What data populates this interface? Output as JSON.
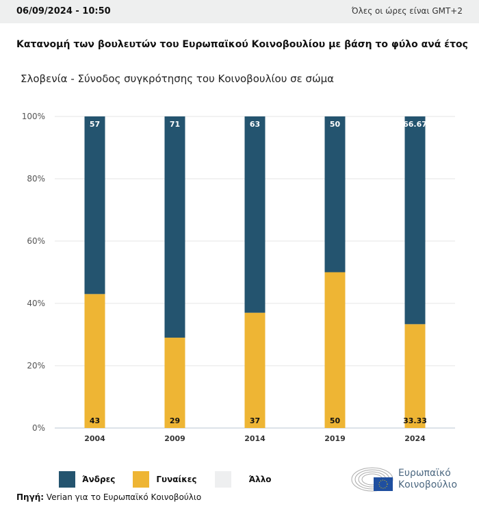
{
  "header": {
    "date": "06/09/2024 - 10:50",
    "timezone": "Όλες οι ώρες είναι GMT+2"
  },
  "chart_data": {
    "type": "bar",
    "stacked": true,
    "title": "Κατανομή των βουλευτών του Ευρωπαϊκού Κοινοβουλίου με βάση το φύλο ανά έτος",
    "subtitle": "Σλοβενία - Σύνοδος συγκρότησης του Κοινοβουλίου σε σώμα",
    "categories": [
      "2004",
      "2009",
      "2014",
      "2019",
      "2024"
    ],
    "series": [
      {
        "name": "Γυναίκες",
        "color": "#eeb534",
        "values": [
          43,
          29,
          37,
          50,
          33.33
        ],
        "labels": [
          "43",
          "29",
          "37",
          "50",
          "33.33"
        ]
      },
      {
        "name": "Άνδρες",
        "color": "#24546f",
        "values": [
          57,
          71,
          63,
          50,
          66.67
        ],
        "labels": [
          "57",
          "71",
          "63",
          "50",
          "66.67"
        ]
      },
      {
        "name": "Άλλο",
        "color": "#eeeff0",
        "values": [
          0,
          0,
          0,
          0,
          0
        ]
      }
    ],
    "yticks": [
      "0%",
      "20%",
      "40%",
      "60%",
      "80%",
      "100%"
    ],
    "ylim": [
      0,
      100
    ],
    "grid": true,
    "legend_position": "bottom-left"
  },
  "legend": [
    {
      "label": "Άνδρες",
      "color": "#24546f"
    },
    {
      "label": "Γυναίκες",
      "color": "#eeb534"
    },
    {
      "label": "Άλλο",
      "color": "#eeeff0"
    }
  ],
  "source": {
    "label": "Πηγή:",
    "text": " Verian για το Ευρωπαϊκό Κοινοβούλιο"
  },
  "logo": {
    "line1": "Ευρωπαϊκό",
    "line2": "Κοινοβούλιο"
  }
}
